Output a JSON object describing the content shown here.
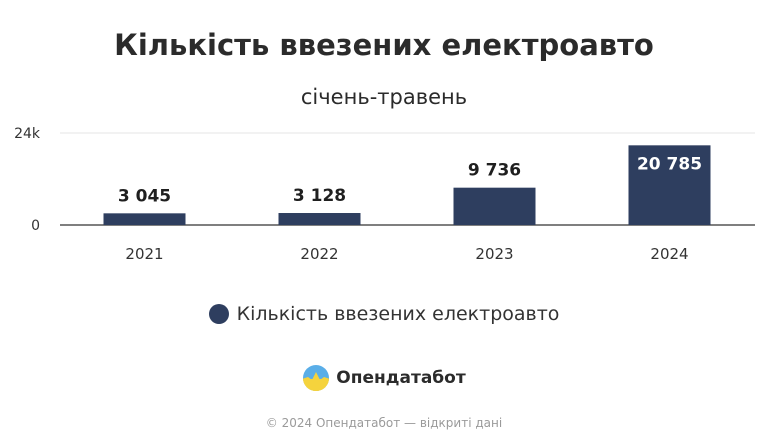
{
  "chart_data": {
    "type": "bar",
    "title": "Кількість ввезених електроавто",
    "subtitle": "січень-травень",
    "categories": [
      "2021",
      "2022",
      "2023",
      "2024"
    ],
    "series": [
      {
        "name": "Кількість ввезених електроавто",
        "values": [
          3045,
          3128,
          9736,
          20785
        ]
      }
    ],
    "value_labels": [
      "3 045",
      "3 128",
      "9 736",
      "20 785"
    ],
    "y_ticks": [
      {
        "value": 0,
        "label": "0"
      },
      {
        "value": 24000,
        "label": "24k"
      }
    ],
    "ylim": [
      0,
      24000
    ],
    "grid": true,
    "legend_position": "bottom",
    "colors": {
      "bar": "#2e3e5f",
      "grid": "#e6e6e6",
      "axis": "#333333"
    }
  },
  "brand": {
    "name": "Опендатабот",
    "logo_icon": "opendatabot-logo-icon"
  },
  "footer": {
    "text": "© 2024 Опендатабот — відкриті дані"
  }
}
